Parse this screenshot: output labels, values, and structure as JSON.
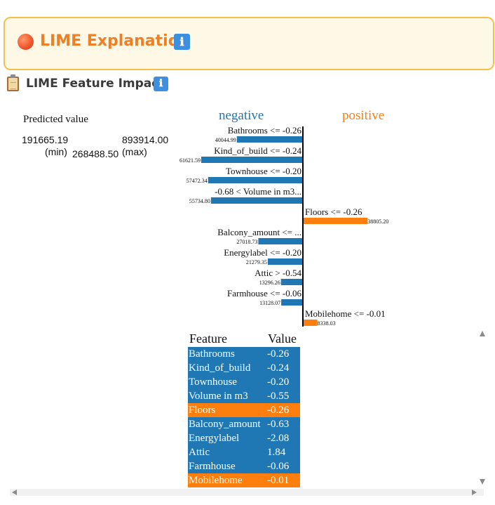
{
  "banner": {
    "title": "LIME Explanation",
    "info_icon": "ℹ"
  },
  "section": {
    "title": "LIME Feature Impact",
    "info_icon": "ℹ"
  },
  "prediction": {
    "label": "Predicted value",
    "min_value": "191665.19",
    "max_value": "893914.00",
    "min_tag": "(min)",
    "max_tag": "(max)",
    "predicted": "268488.50"
  },
  "chart_data": {
    "type": "bar",
    "negative_label": "negative",
    "positive_label": "positive",
    "colors": {
      "negative": "#1f77b4",
      "positive": "#ff7f0e"
    },
    "bars": [
      {
        "label": "Bathrooms <= -0.26",
        "value_label": "40044.99",
        "value": -40044.99
      },
      {
        "label": "Kind_of_build <= -0.24",
        "value_label": "61621.59",
        "value": -61621.59
      },
      {
        "label": "Townhouse <= -0.20",
        "value_label": "57472.34",
        "value": -57472.34
      },
      {
        "label": "-0.68 < Volume in m3...",
        "value_label": "55734.80",
        "value": -55734.8
      },
      {
        "label": "Floors <= -0.26",
        "value_label": "38805.20",
        "value": 38805.2
      },
      {
        "label": "Balcony_amount <= ...",
        "value_label": "27018.73",
        "value": -27018.73
      },
      {
        "label": "Energylabel <= -0.20",
        "value_label": "21279.35",
        "value": -21279.35
      },
      {
        "label": "Attic > -0.54",
        "value_label": "13296.26",
        "value": -13296.26
      },
      {
        "label": "Farmhouse <= -0.06",
        "value_label": "13128.07",
        "value": -13128.07
      },
      {
        "label": "Mobilehome <= -0.01",
        "value_label": "8338.03",
        "value": 8338.03
      }
    ]
  },
  "table": {
    "headers": [
      "Feature",
      "Value"
    ],
    "rows": [
      {
        "feature": "Bathrooms",
        "value": "-0.26",
        "sign": "neg"
      },
      {
        "feature": "Kind_of_build",
        "value": "-0.24",
        "sign": "neg"
      },
      {
        "feature": "Townhouse",
        "value": "-0.20",
        "sign": "neg"
      },
      {
        "feature": "Volume in m3",
        "value": "-0.55",
        "sign": "neg"
      },
      {
        "feature": "Floors",
        "value": "-0.26",
        "sign": "pos"
      },
      {
        "feature": "Balcony_amount",
        "value": "-0.63",
        "sign": "neg"
      },
      {
        "feature": "Energylabel",
        "value": "-2.08",
        "sign": "neg"
      },
      {
        "feature": "Attic",
        "value": "1.84",
        "sign": "neg"
      },
      {
        "feature": "Farmhouse",
        "value": "-0.06",
        "sign": "neg"
      },
      {
        "feature": "Mobilehome",
        "value": "-0.01",
        "sign": "pos"
      }
    ]
  }
}
